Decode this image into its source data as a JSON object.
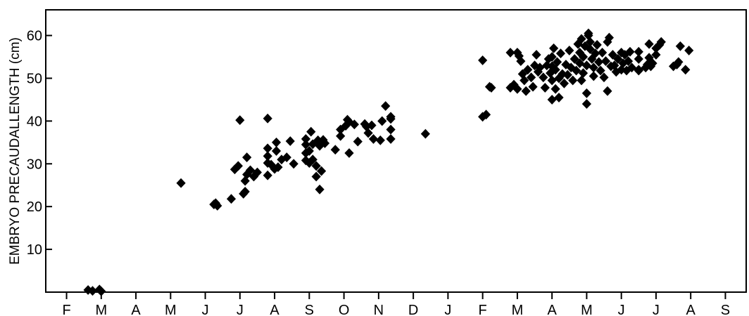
{
  "chart_data": {
    "type": "scatter",
    "title": "",
    "xlabel": "",
    "ylabel": "EMBRYO PRECAUDALLENGTH (cm)",
    "x_unit": "month index (0 = first F)",
    "x_tick_labels": [
      "F",
      "M",
      "A",
      "M",
      "J",
      "J",
      "A",
      "S",
      "O",
      "N",
      "D",
      "J",
      "F",
      "M",
      "A",
      "M",
      "J",
      "J",
      "A",
      "S"
    ],
    "x_ticks": [
      0,
      1,
      2,
      3,
      4,
      5,
      6,
      7,
      8,
      9,
      10,
      11,
      12,
      13,
      14,
      15,
      16,
      17,
      18,
      19
    ],
    "xlim": [
      -0.6,
      19.6
    ],
    "y_ticks": [
      10,
      20,
      30,
      40,
      50,
      60
    ],
    "ylim": [
      0,
      66
    ],
    "marker": "diamond",
    "marker_color": "#000000",
    "grid": false,
    "points": [
      [
        0.62,
        0.5
      ],
      [
        0.75,
        0.3
      ],
      [
        0.95,
        0.6
      ],
      [
        1.0,
        0.2
      ],
      [
        3.3,
        25.5
      ],
      [
        4.25,
        20.5
      ],
      [
        4.3,
        20.8
      ],
      [
        4.35,
        20.2
      ],
      [
        4.75,
        21.8
      ],
      [
        4.85,
        28.7
      ],
      [
        4.95,
        29.5
      ],
      [
        5.0,
        40.2
      ],
      [
        5.1,
        23.0
      ],
      [
        5.15,
        23.5
      ],
      [
        5.15,
        26.0
      ],
      [
        5.2,
        27.5
      ],
      [
        5.2,
        31.5
      ],
      [
        5.3,
        28.5
      ],
      [
        5.4,
        27.0
      ],
      [
        5.5,
        28.0
      ],
      [
        5.8,
        40.6
      ],
      [
        5.8,
        27.3
      ],
      [
        5.8,
        30.2
      ],
      [
        5.8,
        31.8
      ],
      [
        5.8,
        33.6
      ],
      [
        5.9,
        29.8
      ],
      [
        6.0,
        28.8
      ],
      [
        6.05,
        35.0
      ],
      [
        6.05,
        33.0
      ],
      [
        6.1,
        29.2
      ],
      [
        6.2,
        31.0
      ],
      [
        6.35,
        31.5
      ],
      [
        6.45,
        35.3
      ],
      [
        6.55,
        30.0
      ],
      [
        6.9,
        30.8
      ],
      [
        6.9,
        32.5
      ],
      [
        6.9,
        34.5
      ],
      [
        6.9,
        35.8
      ],
      [
        7.0,
        30.2
      ],
      [
        7.0,
        33.0
      ],
      [
        7.05,
        37.5
      ],
      [
        7.1,
        34.6
      ],
      [
        7.1,
        31.0
      ],
      [
        7.2,
        29.5
      ],
      [
        7.2,
        27.0
      ],
      [
        7.25,
        35.5
      ],
      [
        7.3,
        24.0
      ],
      [
        7.3,
        34.2
      ],
      [
        7.35,
        28.3
      ],
      [
        7.4,
        35.6
      ],
      [
        7.45,
        34.8
      ],
      [
        7.75,
        33.3
      ],
      [
        7.9,
        36.5
      ],
      [
        7.9,
        38.0
      ],
      [
        8.05,
        38.9
      ],
      [
        8.1,
        40.3
      ],
      [
        8.15,
        32.5
      ],
      [
        8.15,
        39.8
      ],
      [
        8.3,
        39.2
      ],
      [
        8.4,
        35.2
      ],
      [
        8.6,
        39.3
      ],
      [
        8.65,
        38.7
      ],
      [
        8.7,
        37.2
      ],
      [
        8.8,
        39.0
      ],
      [
        8.85,
        35.8
      ],
      [
        9.05,
        35.5
      ],
      [
        9.1,
        40.0
      ],
      [
        9.2,
        43.5
      ],
      [
        9.35,
        41.0
      ],
      [
        9.35,
        40.5
      ],
      [
        9.35,
        38.0
      ],
      [
        9.35,
        35.8
      ],
      [
        10.35,
        37.0
      ],
      [
        12.0,
        54.2
      ],
      [
        12.0,
        41.0
      ],
      [
        12.1,
        41.5
      ],
      [
        12.2,
        48.0
      ],
      [
        12.25,
        47.8
      ],
      [
        12.8,
        56.0
      ],
      [
        12.8,
        47.8
      ],
      [
        12.9,
        48.5
      ],
      [
        13.0,
        56.0
      ],
      [
        13.0,
        47.5
      ],
      [
        13.05,
        55.2
      ],
      [
        13.1,
        54.0
      ],
      [
        13.15,
        51.0
      ],
      [
        13.2,
        49.5
      ],
      [
        13.25,
        47.0
      ],
      [
        13.3,
        52.0
      ],
      [
        13.4,
        50.2
      ],
      [
        13.45,
        48.0
      ],
      [
        13.5,
        53.0
      ],
      [
        13.55,
        55.5
      ],
      [
        13.6,
        51.5
      ],
      [
        13.65,
        52.5
      ],
      [
        13.75,
        50.2
      ],
      [
        13.8,
        47.8
      ],
      [
        13.85,
        53.0
      ],
      [
        13.9,
        54.5
      ],
      [
        13.95,
        51.2
      ],
      [
        14.0,
        49.5
      ],
      [
        14.0,
        52.8
      ],
      [
        14.0,
        55.0
      ],
      [
        14.0,
        45.0
      ],
      [
        14.05,
        57.0
      ],
      [
        14.1,
        47.5
      ],
      [
        14.1,
        52.0
      ],
      [
        14.15,
        53.8
      ],
      [
        14.2,
        45.5
      ],
      [
        14.2,
        50.0
      ],
      [
        14.25,
        55.8
      ],
      [
        14.3,
        51.0
      ],
      [
        14.35,
        48.8
      ],
      [
        14.4,
        53.2
      ],
      [
        14.45,
        50.8
      ],
      [
        14.5,
        56.5
      ],
      [
        14.55,
        52.5
      ],
      [
        14.6,
        49.5
      ],
      [
        14.65,
        54.5
      ],
      [
        14.7,
        51.8
      ],
      [
        14.75,
        58.0
      ],
      [
        14.8,
        53.5
      ],
      [
        14.8,
        56.0
      ],
      [
        14.85,
        59.2
      ],
      [
        14.85,
        49.5
      ],
      [
        14.9,
        55.0
      ],
      [
        14.9,
        51.2
      ],
      [
        14.95,
        57.5
      ],
      [
        15.0,
        53.0
      ],
      [
        15.0,
        44.0
      ],
      [
        15.0,
        46.5
      ],
      [
        15.05,
        60.5
      ],
      [
        15.05,
        60.0
      ],
      [
        15.1,
        56.8
      ],
      [
        15.1,
        58.5
      ],
      [
        15.15,
        54.5
      ],
      [
        15.2,
        50.5
      ],
      [
        15.2,
        52.5
      ],
      [
        15.25,
        55.8
      ],
      [
        15.3,
        57.8
      ],
      [
        15.35,
        53.8
      ],
      [
        15.4,
        51.8
      ],
      [
        15.45,
        56.0
      ],
      [
        15.5,
        50.2
      ],
      [
        15.55,
        54.0
      ],
      [
        15.6,
        58.5
      ],
      [
        15.6,
        47.0
      ],
      [
        15.65,
        59.5
      ],
      [
        15.7,
        52.8
      ],
      [
        15.75,
        55.5
      ],
      [
        15.8,
        53.0
      ],
      [
        15.85,
        51.5
      ],
      [
        15.9,
        54.5
      ],
      [
        16.0,
        52.0
      ],
      [
        16.0,
        56.0
      ],
      [
        16.05,
        53.5
      ],
      [
        16.1,
        55.5
      ],
      [
        16.15,
        51.8
      ],
      [
        16.2,
        54.0
      ],
      [
        16.25,
        56.2
      ],
      [
        16.3,
        52.5
      ],
      [
        16.5,
        56.2
      ],
      [
        16.5,
        54.5
      ],
      [
        16.5,
        52.0
      ],
      [
        16.5,
        51.8
      ],
      [
        16.7,
        52.5
      ],
      [
        16.75,
        53.2
      ],
      [
        16.8,
        58.0
      ],
      [
        16.8,
        54.8
      ],
      [
        16.85,
        52.8
      ],
      [
        16.9,
        53.5
      ],
      [
        17.0,
        55.5
      ],
      [
        17.0,
        57.0
      ],
      [
        17.1,
        57.8
      ],
      [
        17.15,
        58.5
      ],
      [
        17.5,
        52.8
      ],
      [
        17.6,
        53.2
      ],
      [
        17.65,
        53.8
      ],
      [
        17.7,
        57.5
      ],
      [
        17.85,
        52.0
      ],
      [
        17.95,
        56.5
      ]
    ]
  }
}
